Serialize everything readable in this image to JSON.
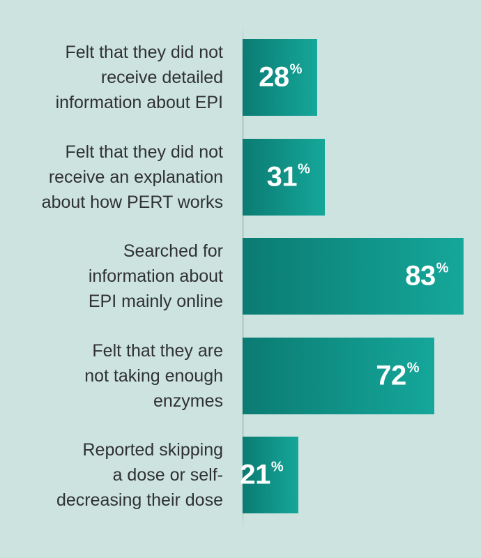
{
  "chart_data": {
    "type": "bar",
    "orientation": "horizontal",
    "categories": [
      [
        "Felt that they did not",
        "receive detailed",
        "information about EPI"
      ],
      [
        "Felt that they did not",
        "receive an explanation",
        "about how PERT works"
      ],
      [
        "Searched for",
        "information about",
        "EPI mainly online"
      ],
      [
        "Felt that they are",
        "not taking enough",
        "enzymes"
      ],
      [
        "Reported skipping",
        "a dose or self-",
        "decreasing their dose"
      ]
    ],
    "values": [
      28,
      31,
      83,
      72,
      21
    ],
    "value_labels": [
      "28",
      "31",
      "83",
      "72",
      "21"
    ],
    "value_suffix": "%",
    "xlim": [
      0,
      100
    ],
    "grid": false,
    "legend": "none",
    "colors": {
      "bar_start": "#0b7b72",
      "bar_end": "#15a79a",
      "background": "#cde3e0",
      "label": "#2f3133"
    }
  }
}
